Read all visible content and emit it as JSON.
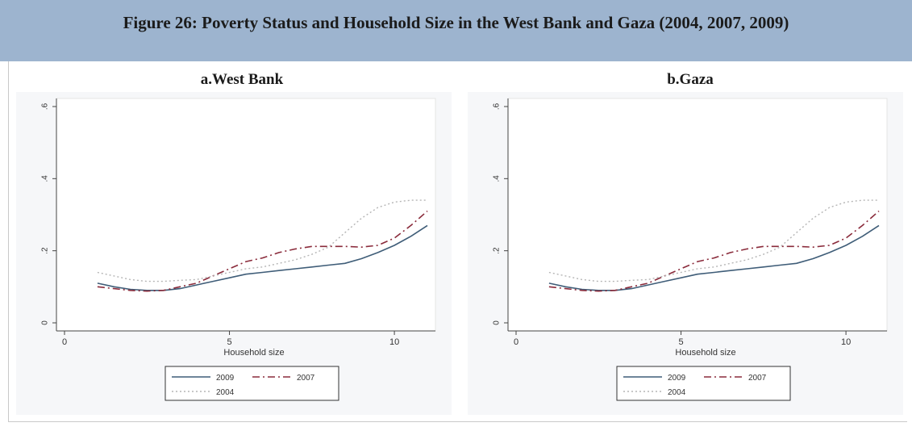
{
  "figure_title": "Figure 26: Poverty Status and Household Size in the West Bank and Gaza (2004, 2007, 2009)",
  "colors": {
    "banner": "#9db4cf",
    "line_2009": "#3f5d78",
    "line_2007": "#8a2b3b",
    "line_2004": "#b5b5b5"
  },
  "chart_data": [
    {
      "type": "line",
      "title": "a.West Bank",
      "xlabel": "Household size",
      "ylabel": "",
      "xlim": [
        0,
        11
      ],
      "ylim": [
        0,
        0.6
      ],
      "xticks": [
        "0",
        "5",
        "10"
      ],
      "yticks": [
        "0",
        ".2",
        ".4",
        ".6"
      ],
      "grid": false,
      "legend": "bottom",
      "x": [
        1,
        1.5,
        2,
        2.5,
        3,
        3.5,
        4,
        4.5,
        5,
        5.5,
        6,
        6.5,
        7,
        7.5,
        8,
        8.5,
        9,
        9.5,
        10,
        10.5,
        11
      ],
      "series": [
        {
          "name": "2009",
          "style": "solid",
          "values": [
            0.11,
            0.1,
            0.093,
            0.09,
            0.09,
            0.095,
            0.105,
            0.115,
            0.125,
            0.135,
            0.14,
            0.145,
            0.15,
            0.155,
            0.16,
            0.165,
            0.178,
            0.195,
            0.215,
            0.24,
            0.27
          ]
        },
        {
          "name": "2007",
          "style": "dash",
          "values": [
            0.1,
            0.095,
            0.09,
            0.088,
            0.09,
            0.1,
            0.11,
            0.13,
            0.15,
            0.17,
            0.18,
            0.195,
            0.205,
            0.212,
            0.212,
            0.212,
            0.21,
            0.215,
            0.235,
            0.27,
            0.31
          ]
        },
        {
          "name": "2004",
          "style": "dot",
          "values": [
            0.14,
            0.13,
            0.12,
            0.115,
            0.115,
            0.118,
            0.12,
            0.13,
            0.14,
            0.15,
            0.155,
            0.165,
            0.175,
            0.19,
            0.21,
            0.25,
            0.29,
            0.32,
            0.335,
            0.34,
            0.34
          ]
        }
      ]
    },
    {
      "type": "line",
      "title": "b.Gaza",
      "xlabel": "Household size",
      "ylabel": "",
      "xlim": [
        0,
        11
      ],
      "ylim": [
        0,
        0.6
      ],
      "xticks": [
        "0",
        "5",
        "10"
      ],
      "yticks": [
        "0",
        ".2",
        ".4",
        ".6"
      ],
      "grid": false,
      "legend": "bottom",
      "x": [
        1,
        1.5,
        2,
        2.5,
        3,
        3.5,
        4,
        4.5,
        5,
        5.5,
        6,
        6.5,
        7,
        7.5,
        8,
        8.5,
        9,
        9.5,
        10,
        10.5,
        11
      ],
      "series": [
        {
          "name": "2009",
          "style": "solid",
          "values": [
            0.11,
            0.1,
            0.093,
            0.09,
            0.09,
            0.095,
            0.105,
            0.115,
            0.125,
            0.135,
            0.14,
            0.145,
            0.15,
            0.155,
            0.16,
            0.165,
            0.178,
            0.195,
            0.215,
            0.24,
            0.27
          ]
        },
        {
          "name": "2007",
          "style": "dash",
          "values": [
            0.1,
            0.095,
            0.09,
            0.088,
            0.09,
            0.1,
            0.11,
            0.13,
            0.15,
            0.17,
            0.18,
            0.195,
            0.205,
            0.212,
            0.212,
            0.212,
            0.21,
            0.215,
            0.235,
            0.27,
            0.31
          ]
        },
        {
          "name": "2004",
          "style": "dot",
          "values": [
            0.14,
            0.13,
            0.12,
            0.115,
            0.115,
            0.118,
            0.12,
            0.13,
            0.14,
            0.15,
            0.155,
            0.165,
            0.175,
            0.19,
            0.21,
            0.25,
            0.29,
            0.32,
            0.335,
            0.34,
            0.34
          ]
        }
      ]
    }
  ]
}
